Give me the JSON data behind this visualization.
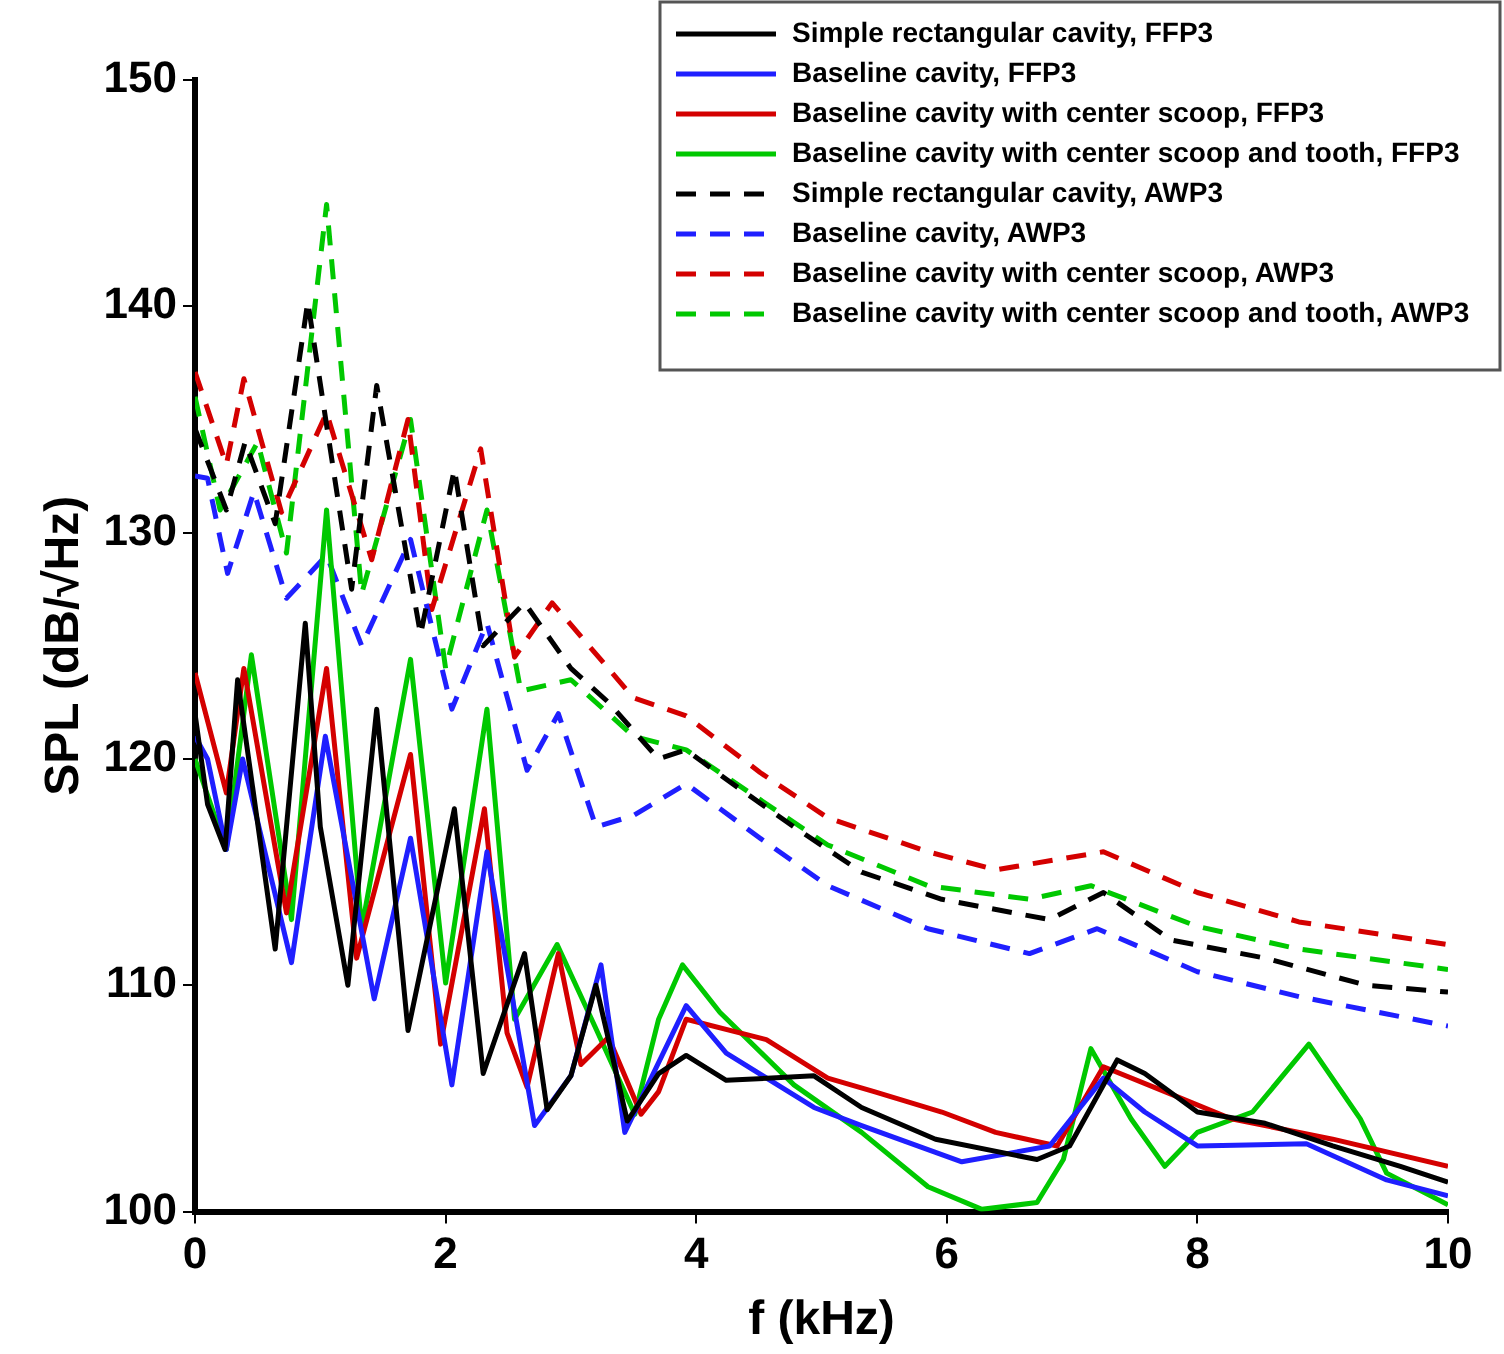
{
  "chart_data": {
    "type": "line",
    "xlabel": "f (kHz)",
    "ylabel": "SPL (dB/√Hz)",
    "xlim": [
      0,
      10
    ],
    "xticks": [
      0,
      2,
      4,
      6,
      8,
      10
    ],
    "ylim": [
      100,
      150
    ],
    "yticks": [
      100,
      110,
      120,
      130,
      140,
      150
    ],
    "grid": false,
    "legend": "top right",
    "marker": "none",
    "series": [
      {
        "name": "Simple rectangular cavity, FFP3",
        "color": "#000000",
        "line_style": "solid",
        "x": [
          0,
          0.1,
          0.24,
          0.34,
          0.64,
          0.88,
          1.0,
          1.22,
          1.45,
          1.7,
          2.07,
          2.3,
          2.63,
          2.81,
          3.0,
          3.2,
          3.45,
          3.7,
          3.92,
          4.24,
          4.94,
          5.32,
          5.91,
          6.72,
          6.98,
          7.36,
          7.58,
          8.0,
          8.54,
          9.08,
          9.62,
          10
        ],
        "values": [
          122,
          118,
          116,
          123.5,
          111.6,
          126,
          117,
          110,
          122.2,
          108,
          117.8,
          106.1,
          111.4,
          104.5,
          106,
          110,
          104,
          106.1,
          106.9,
          105.8,
          106,
          104.6,
          103.2,
          102.3,
          102.9,
          106.7,
          106.1,
          104.4,
          103.9,
          102.9,
          102,
          101.3
        ]
      },
      {
        "name": "Baseline cavity, FFP3",
        "color": "#1f1fff",
        "line_style": "solid",
        "x": [
          0,
          0.1,
          0.25,
          0.38,
          0.77,
          1.04,
          1.43,
          1.72,
          2.05,
          2.33,
          2.71,
          3.0,
          3.24,
          3.43,
          3.92,
          4.24,
          4.94,
          5.32,
          6.12,
          6.82,
          7.25,
          7.58,
          8.0,
          8.87,
          9.51,
          10
        ],
        "values": [
          121,
          120,
          116,
          120,
          111,
          121,
          109.4,
          116.5,
          105.6,
          115.9,
          103.8,
          106,
          110.9,
          103.5,
          109.1,
          107,
          104.6,
          103.8,
          102.2,
          102.9,
          105.9,
          104.4,
          102.9,
          103,
          101.4,
          100.7
        ]
      },
      {
        "name": "Baseline cavity with center scoop, FFP3",
        "color": "#d40000",
        "line_style": "solid",
        "x": [
          0,
          0.25,
          0.39,
          0.73,
          1.05,
          1.29,
          1.72,
          1.96,
          2.31,
          2.49,
          2.65,
          2.9,
          3.08,
          3.3,
          3.56,
          3.7,
          3.92,
          4.56,
          5.05,
          5.42,
          5.96,
          6.39,
          6.88,
          7.25,
          7.74,
          8.27,
          9.08,
          10
        ],
        "values": [
          123.8,
          118.5,
          124,
          113.2,
          124,
          111.2,
          120.2,
          107.4,
          117.8,
          107.9,
          105.5,
          111.4,
          106.5,
          107.7,
          104.3,
          105.3,
          108.5,
          107.6,
          105.9,
          105.3,
          104.4,
          103.5,
          102.9,
          106.4,
          105.3,
          104.1,
          103.2,
          102
        ]
      },
      {
        "name": "Baseline cavity with center scoop and tooth, FFP3",
        "color": "#00c800",
        "line_style": "solid",
        "x": [
          0,
          0.25,
          0.45,
          0.77,
          1.05,
          1.33,
          1.72,
          2.0,
          2.33,
          2.55,
          2.89,
          3.19,
          3.51,
          3.7,
          3.89,
          4.19,
          4.78,
          5.32,
          5.85,
          6.28,
          6.72,
          6.93,
          7.15,
          7.47,
          7.74,
          8.0,
          8.44,
          8.89,
          9.3,
          9.51,
          10
        ],
        "values": [
          120,
          116,
          124.6,
          112.9,
          131,
          112.5,
          124.4,
          110.1,
          122.2,
          108.5,
          111.8,
          108.2,
          104.3,
          108.5,
          110.9,
          108.8,
          105.6,
          103.5,
          101.1,
          100.1,
          100.4,
          102.3,
          107.2,
          104.1,
          102,
          103.5,
          104.4,
          107.4,
          104.1,
          101.7,
          100.3
        ]
      },
      {
        "name": "Simple rectangular cavity, AWP3",
        "color": "#000000",
        "line_style": "dashed",
        "x": [
          0,
          0.25,
          0.4,
          0.64,
          0.9,
          1.25,
          1.45,
          1.8,
          2.07,
          2.3,
          2.63,
          3.0,
          3.3,
          3.7,
          3.92,
          4.24,
          4.78,
          5.32,
          5.96,
          6.82,
          7.25,
          7.79,
          8.54,
          9.35,
          10
        ],
        "values": [
          134.6,
          131,
          134,
          130.4,
          140.2,
          127.5,
          136.5,
          125.5,
          132.8,
          125,
          126.9,
          124,
          122.5,
          120,
          120.4,
          119.1,
          117,
          115,
          113.8,
          112.9,
          114.1,
          112,
          111.2,
          110,
          109.7
        ]
      },
      {
        "name": "Baseline cavity, AWP3",
        "color": "#1f1fff",
        "line_style": "dashed",
        "x": [
          0,
          0.1,
          0.26,
          0.47,
          0.73,
          1.05,
          1.33,
          1.72,
          2.05,
          2.33,
          2.65,
          2.9,
          3.2,
          3.5,
          3.92,
          4.51,
          5.05,
          5.85,
          6.66,
          7.2,
          8.0,
          8.81,
          10
        ],
        "values": [
          132.5,
          132.4,
          128.2,
          131.8,
          127.1,
          129,
          125,
          129.7,
          122.2,
          126,
          119.5,
          122,
          117,
          117.5,
          118.9,
          116.5,
          114.4,
          112.5,
          111.4,
          112.5,
          110.6,
          109.5,
          108.2
        ]
      },
      {
        "name": "Baseline cavity with center scoop, AWP3",
        "color": "#d40000",
        "line_style": "dashed",
        "x": [
          0,
          0.25,
          0.39,
          0.69,
          1.05,
          1.41,
          1.7,
          1.89,
          2.28,
          2.55,
          2.85,
          3.5,
          3.92,
          4.51,
          5.05,
          5.85,
          6.39,
          7.25,
          8.0,
          8.81,
          10
        ],
        "values": [
          137.1,
          133,
          136.8,
          130.9,
          135.3,
          128.8,
          135,
          126.6,
          133.7,
          124.5,
          126.9,
          122.7,
          121.9,
          119.4,
          117.4,
          115.9,
          115.1,
          115.9,
          114.1,
          112.8,
          111.8
        ]
      },
      {
        "name": "Baseline cavity with center scoop and tooth, AWP3",
        "color": "#00c800",
        "line_style": "dashed",
        "x": [
          0,
          0.2,
          0.5,
          0.73,
          1.05,
          1.33,
          1.72,
          2.0,
          2.33,
          2.6,
          3.0,
          3.5,
          3.92,
          4.51,
          5.05,
          5.85,
          6.66,
          7.15,
          8.0,
          8.81,
          10
        ],
        "values": [
          136,
          131,
          134,
          129.1,
          144.5,
          127.3,
          135,
          124,
          131,
          123,
          123.5,
          121,
          120.4,
          118.2,
          116.2,
          114.4,
          113.8,
          114.4,
          112.6,
          111.6,
          110.7
        ]
      }
    ]
  }
}
